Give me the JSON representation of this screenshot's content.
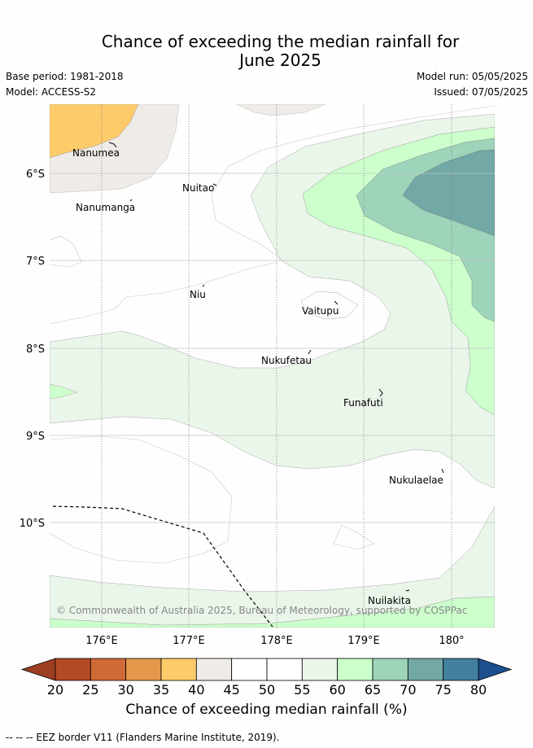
{
  "header": {
    "title_line1": "Chance of exceeding the median rainfall for",
    "title_line2": "June 2025",
    "base_period": "Base period: 1981-2018",
    "model": "Model: ACCESS-S2",
    "model_run": "Model run: 05/05/2025",
    "issued": "Issued: 07/05/2025"
  },
  "map": {
    "lat_labels": [
      "6°S",
      "7°S",
      "8°S",
      "9°S",
      "10°S"
    ],
    "lon_labels": [
      "176°E",
      "177°E",
      "178°E",
      "179°E",
      "180°"
    ],
    "places": [
      {
        "name": "Nanumea"
      },
      {
        "name": "Nuitao"
      },
      {
        "name": "Nanumanga"
      },
      {
        "name": "Niu"
      },
      {
        "name": "Vaitupu"
      },
      {
        "name": "Nukufetau"
      },
      {
        "name": "Funafuti"
      },
      {
        "name": "Nukulaelae"
      },
      {
        "name": "Nuilakita"
      }
    ],
    "copyright": "© Commonwealth of Australia 2025, Bureau of Meteorology, supported by COSPPac"
  },
  "colorbar": {
    "ticks": [
      "20",
      "25",
      "30",
      "35",
      "40",
      "45",
      "50",
      "55",
      "60",
      "65",
      "70",
      "75",
      "80"
    ],
    "colors": [
      "#b24a26",
      "#d06a36",
      "#e5984c",
      "#fdcb6a",
      "#efebe7",
      "#ffffff",
      "#ffffff",
      "#ebf6ea",
      "#ccffcc",
      "#9dd4ba",
      "#72a9a7",
      "#437f9e"
    ],
    "under_color": "#9c3e20",
    "over_color": "#1c4f8f",
    "label": "Chance of exceeding median rainfall (%)"
  },
  "footer": {
    "legend_text": "--  --  -- EEZ border V11 (Flanders Marine Institute, 2019)."
  }
}
